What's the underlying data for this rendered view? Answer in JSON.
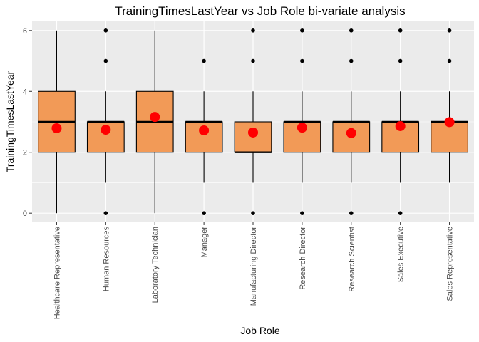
{
  "chart_data": {
    "type": "boxplot",
    "title": "TrainingTimesLastYear vs Job Role bi-variate analysis",
    "xlabel": "Job Role",
    "ylabel": "TrainingTimesLastYear",
    "ylim": [
      -0.3,
      6.3
    ],
    "yticks": [
      0,
      2,
      4,
      6
    ],
    "grid": true,
    "colors": {
      "panel": "#ebebeb",
      "grid": "#ffffff",
      "box_fill": "#f29a57",
      "box_line": "#000000",
      "mean_point": "#ff0000",
      "outlier": "#000000"
    },
    "categories": [
      "Healthcare Representative",
      "Human Resources",
      "Laboratory Technician",
      "Manager",
      "Manufacturing Director",
      "Research Director",
      "Research Scientist",
      "Sales Executive",
      "Sales Representative"
    ],
    "boxes": [
      {
        "min": 0,
        "q1": 2,
        "median": 3,
        "q3": 4,
        "max": 6,
        "mean": 2.79,
        "outliers": []
      },
      {
        "min": 1,
        "q1": 2,
        "median": 3,
        "q3": 3,
        "max": 4,
        "mean": 2.74,
        "outliers": [
          0,
          5,
          6
        ]
      },
      {
        "min": 0,
        "q1": 2,
        "median": 3,
        "q3": 4,
        "max": 6,
        "mean": 3.16,
        "outliers": []
      },
      {
        "min": 1,
        "q1": 2,
        "median": 3,
        "q3": 3,
        "max": 4,
        "mean": 2.72,
        "outliers": [
          0,
          5
        ]
      },
      {
        "min": 1,
        "q1": 2,
        "median": 2,
        "q3": 3,
        "max": 4,
        "mean": 2.65,
        "outliers": [
          0,
          5,
          6
        ]
      },
      {
        "min": 1,
        "q1": 2,
        "median": 3,
        "q3": 3,
        "max": 4,
        "mean": 2.81,
        "outliers": [
          0,
          5,
          6
        ]
      },
      {
        "min": 1,
        "q1": 2,
        "median": 3,
        "q3": 3,
        "max": 4,
        "mean": 2.63,
        "outliers": [
          0,
          5,
          6
        ]
      },
      {
        "min": 1,
        "q1": 2,
        "median": 3,
        "q3": 3,
        "max": 4,
        "mean": 2.86,
        "outliers": [
          0,
          5,
          6
        ]
      },
      {
        "min": 1,
        "q1": 2,
        "median": 3,
        "q3": 3,
        "max": 4,
        "mean": 2.99,
        "outliers": [
          5,
          6
        ]
      }
    ]
  }
}
